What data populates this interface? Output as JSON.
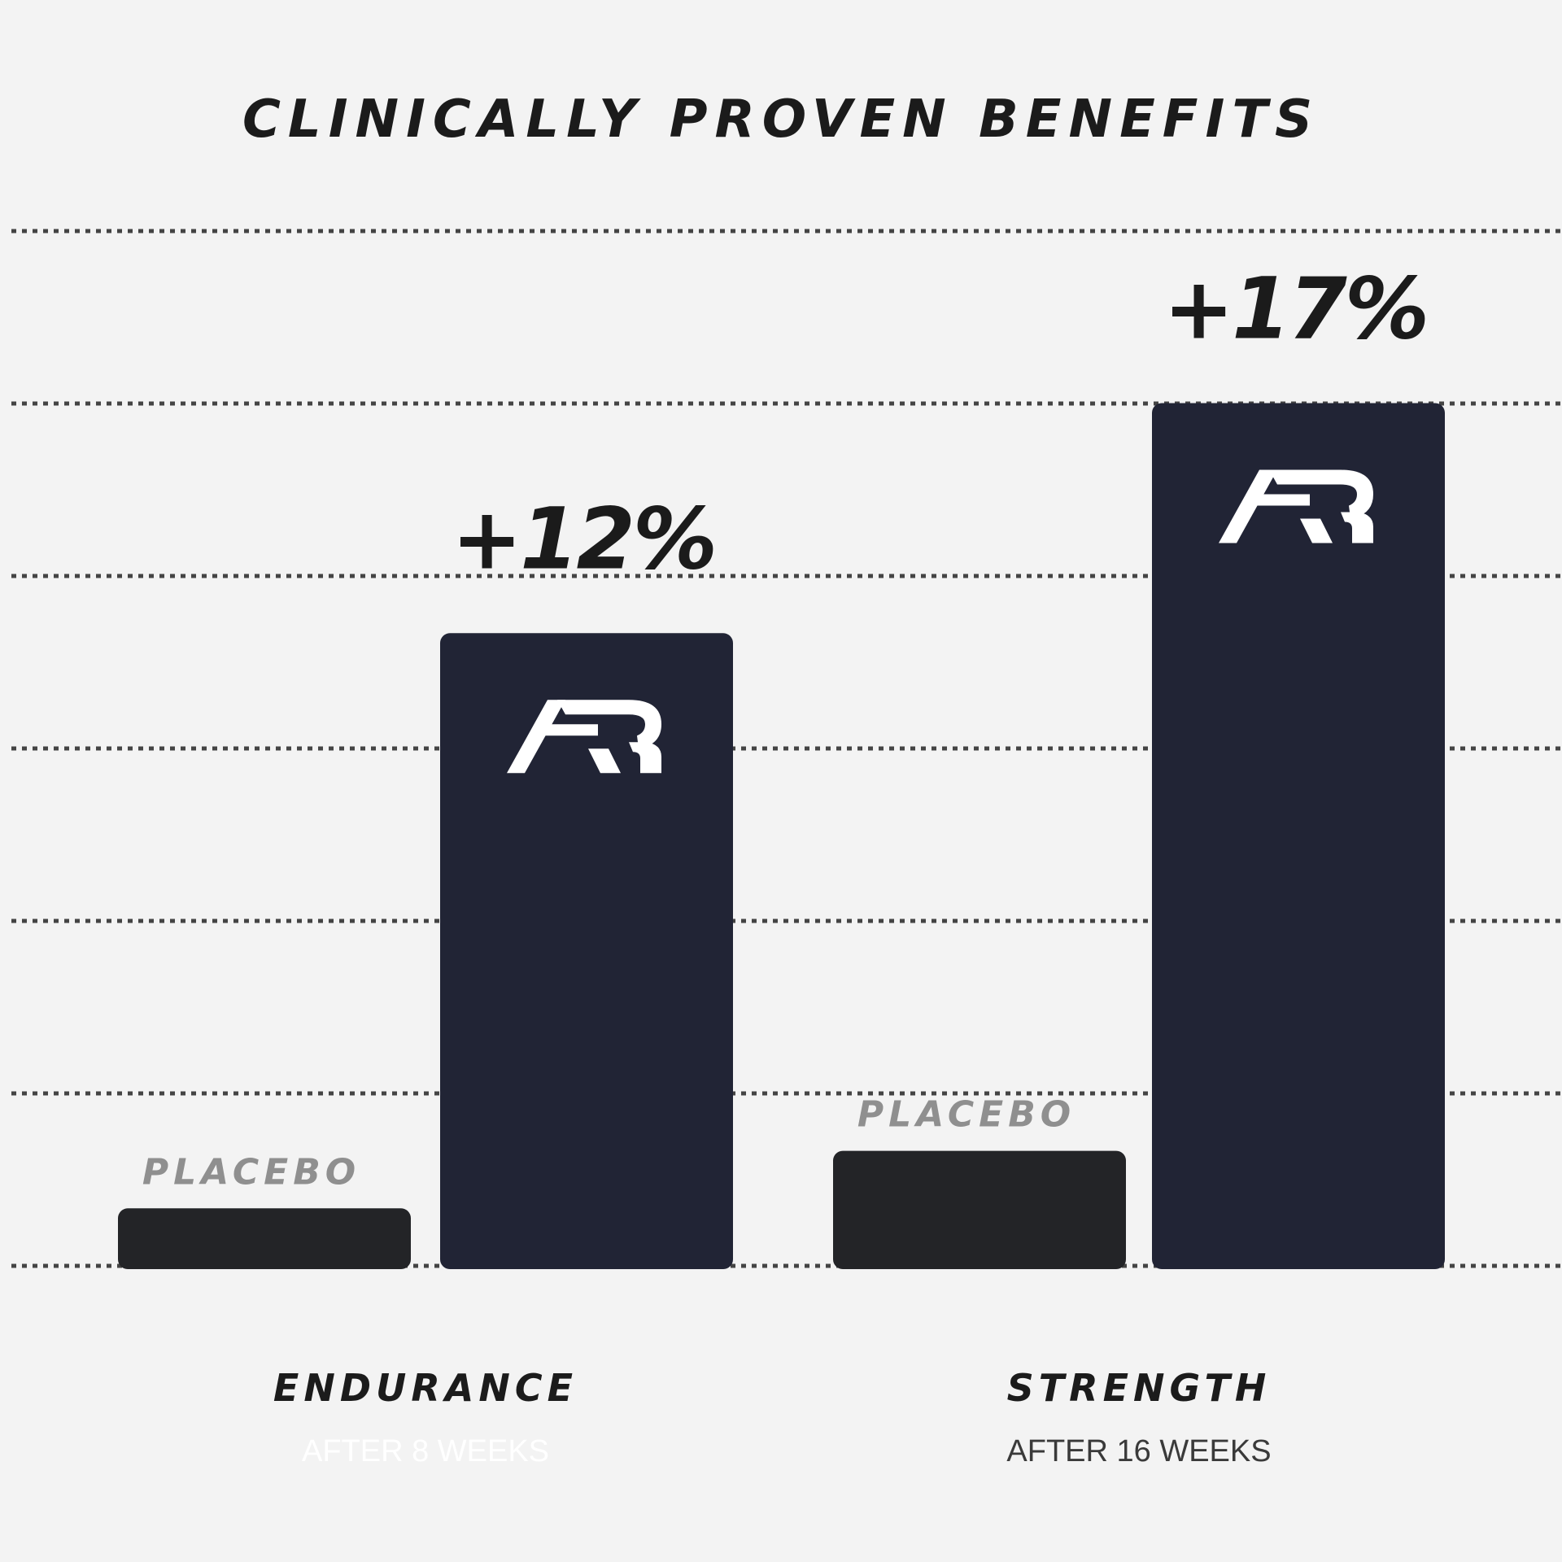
{
  "chart_data": {
    "type": "bar",
    "title": "CLINICALLY PROVEN BENEFITS",
    "xlabel": "",
    "ylabel": "",
    "ylim": [
      0,
      18
    ],
    "grid": true,
    "grid_style": "dotted",
    "categories": [
      {
        "name": "ENDURANCE",
        "subtitle": "AFTER 8 WEEKS"
      },
      {
        "name": "STRENGTH",
        "subtitle": "AFTER 16 WEEKS"
      }
    ],
    "series": [
      {
        "name": "PLACEBO",
        "values": [
          1.0,
          2.0
        ]
      },
      {
        "name": "",
        "values": [
          11,
          15
        ],
        "labels": [
          "+12%",
          "+17%"
        ],
        "logo": "ar-logo"
      }
    ]
  },
  "colors": {
    "background": "#f3f3f3",
    "placebo_bar": "#232427",
    "product_bar": "#212435",
    "placebo_label": "#8f8f8f",
    "text_dark": "#1b1b1b",
    "subtitle_light": "#ffffff",
    "subtitle_dark": "#3a3a3a",
    "grid": "#444444",
    "logo": "#ffffff"
  }
}
